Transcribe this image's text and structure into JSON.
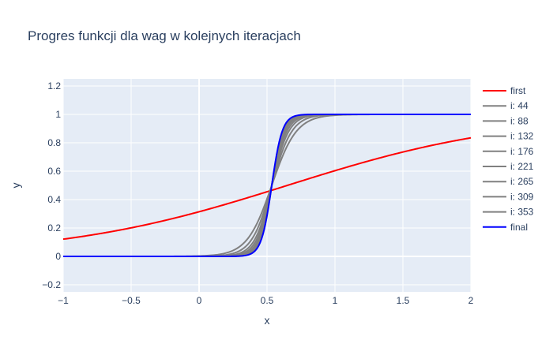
{
  "chart_data": {
    "type": "line",
    "title": "Progres funkcji dla wag w kolejnych iteracjach",
    "xlabel": "x",
    "ylabel": "y",
    "xlim": [
      -1,
      2
    ],
    "ylim": [
      -0.25,
      1.25
    ],
    "x_ticks": [
      -1,
      -0.5,
      0,
      0.5,
      1,
      1.5,
      2
    ],
    "x_tick_labels": [
      "−1",
      "−0.5",
      "0",
      "0.5",
      "1",
      "1.5",
      "2"
    ],
    "y_ticks": [
      -0.2,
      0,
      0.2,
      0.4,
      0.6,
      0.8,
      1,
      1.2
    ],
    "y_tick_labels": [
      "−0.2",
      "0",
      "0.2",
      "0.4",
      "0.6",
      "0.8",
      "1",
      "1.2"
    ],
    "grid": true,
    "legend_position": "right",
    "plot_background": "#e5ecf6",
    "series": [
      {
        "name": "first",
        "color": "#ff0000",
        "width": 2,
        "k": 1.2,
        "x0": 0.65
      },
      {
        "name": "i: 44",
        "color": "#808080",
        "width": 2,
        "k": 11.0,
        "x0": 0.535
      },
      {
        "name": "i: 88",
        "color": "#808080",
        "width": 2,
        "k": 13.5,
        "x0": 0.535
      },
      {
        "name": "i: 132",
        "color": "#808080",
        "width": 2,
        "k": 16.0,
        "x0": 0.535
      },
      {
        "name": "i: 176",
        "color": "#808080",
        "width": 2,
        "k": 18.0,
        "x0": 0.535
      },
      {
        "name": "i: 221",
        "color": "#808080",
        "width": 2,
        "k": 20.0,
        "x0": 0.535
      },
      {
        "name": "i: 265",
        "color": "#808080",
        "width": 2,
        "k": 21.5,
        "x0": 0.535
      },
      {
        "name": "i: 309",
        "color": "#808080",
        "width": 2,
        "k": 23.0,
        "x0": 0.535
      },
      {
        "name": "i: 353",
        "color": "#808080",
        "width": 2,
        "k": 24.5,
        "x0": 0.535
      },
      {
        "name": "final",
        "color": "#0000ff",
        "width": 2,
        "k": 26.0,
        "x0": 0.535
      }
    ]
  }
}
